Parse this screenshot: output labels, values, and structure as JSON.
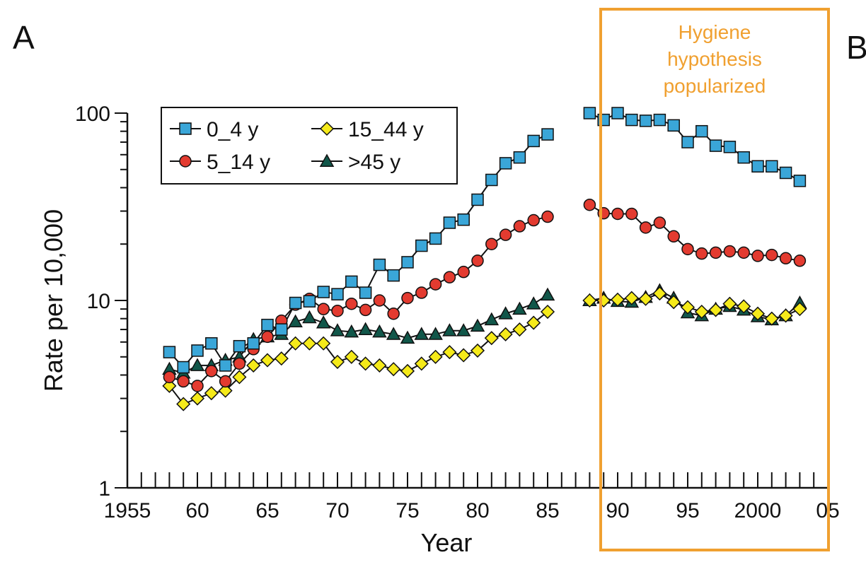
{
  "panel_labels": {
    "left": "A",
    "right": "B"
  },
  "annotation": {
    "lines": [
      "Hygiene",
      "hypothesis",
      "popularized"
    ]
  },
  "colors": {
    "annotation": "#f0a030",
    "series_0_4": "#3aa6d8",
    "series_5_14": "#e33b30",
    "series_15_44": "#f5ea1a",
    "series_gt45": "#11574a",
    "line": "#111111"
  },
  "chart_data": {
    "type": "line",
    "title": "",
    "xlabel": "Year",
    "ylabel": "Rate per 10,000",
    "y_scale": "log",
    "ylim": [
      1,
      100
    ],
    "xlim": [
      1955,
      2005
    ],
    "x_ticks": [
      1955,
      1960,
      1965,
      1970,
      1975,
      1980,
      1985,
      1990,
      1995,
      2000,
      2005
    ],
    "x_tick_labels": [
      "1955",
      "60",
      "65",
      "70",
      "75",
      "80",
      "85",
      "90",
      "95",
      "2000",
      "05"
    ],
    "y_ticks": [
      1,
      10,
      100
    ],
    "y_tick_labels": [
      "1",
      "10",
      "100"
    ],
    "legend_position": "top-left",
    "series": [
      {
        "name": "0_4 y",
        "marker": "square",
        "segments": [
          [
            [
              1958,
              5.3
            ],
            [
              1959,
              4.4
            ],
            [
              1960,
              5.4
            ],
            [
              1961,
              5.9
            ],
            [
              1962,
              4.5
            ],
            [
              1963,
              5.7
            ],
            [
              1964,
              5.9
            ],
            [
              1965,
              7.4
            ],
            [
              1966,
              7.0
            ],
            [
              1967,
              9.7
            ],
            [
              1968,
              9.9
            ],
            [
              1969,
              11.1
            ],
            [
              1970,
              10.8
            ],
            [
              1971,
              12.6
            ],
            [
              1972,
              11.0
            ],
            [
              1973,
              15.5
            ],
            [
              1974,
              13.6
            ],
            [
              1975,
              16.0
            ],
            [
              1976,
              19.6
            ],
            [
              1977,
              21.4
            ],
            [
              1978,
              26.0
            ],
            [
              1979,
              27.0
            ],
            [
              1980,
              34.5
            ],
            [
              1981,
              44.0
            ],
            [
              1982,
              54.0
            ],
            [
              1983,
              58.0
            ],
            [
              1984,
              71.0
            ],
            [
              1985,
              77.0
            ]
          ],
          [
            [
              1988,
              100
            ],
            [
              1989,
              92
            ],
            [
              1990,
              100
            ],
            [
              1991,
              92
            ],
            [
              1992,
              91
            ],
            [
              1993,
              92
            ],
            [
              1994,
              86
            ],
            [
              1995,
              70
            ],
            [
              1996,
              80
            ],
            [
              1997,
              67
            ],
            [
              1998,
              66
            ],
            [
              1999,
              58
            ],
            [
              2000,
              52
            ],
            [
              2001,
              52
            ],
            [
              2002,
              48
            ],
            [
              2003,
              43.5
            ]
          ]
        ]
      },
      {
        "name": "5_14 y",
        "marker": "circle",
        "segments": [
          [
            [
              1958,
              3.9
            ],
            [
              1959,
              3.7
            ],
            [
              1960,
              3.5
            ],
            [
              1961,
              4.2
            ],
            [
              1962,
              3.7
            ],
            [
              1963,
              4.6
            ],
            [
              1964,
              5.5
            ],
            [
              1965,
              6.4
            ],
            [
              1966,
              7.8
            ],
            [
              1967,
              9.5
            ],
            [
              1968,
              10.2
            ],
            [
              1969,
              9.0
            ],
            [
              1970,
              8.8
            ],
            [
              1971,
              9.6
            ],
            [
              1972,
              8.9
            ],
            [
              1973,
              10.0
            ],
            [
              1974,
              8.5
            ],
            [
              1975,
              10.3
            ],
            [
              1976,
              11.0
            ],
            [
              1977,
              12.2
            ],
            [
              1978,
              13.3
            ],
            [
              1979,
              14.2
            ],
            [
              1980,
              16.3
            ],
            [
              1981,
              20.0
            ],
            [
              1982,
              22.4
            ],
            [
              1983,
              24.9
            ],
            [
              1984,
              26.8
            ],
            [
              1985,
              28.0
            ]
          ],
          [
            [
              1988,
              32.4
            ],
            [
              1989,
              29.2
            ],
            [
              1990,
              29.0
            ],
            [
              1991,
              29.0
            ],
            [
              1992,
              24.5
            ],
            [
              1993,
              26.0
            ],
            [
              1994,
              22.0
            ],
            [
              1995,
              18.8
            ],
            [
              1996,
              17.8
            ],
            [
              1997,
              18.0
            ],
            [
              1998,
              18.3
            ],
            [
              1999,
              18.0
            ],
            [
              2000,
              17.3
            ],
            [
              2001,
              17.5
            ],
            [
              2002,
              16.8
            ],
            [
              2003,
              16.3
            ]
          ]
        ]
      },
      {
        "name": "15_44 y",
        "marker": "diamond",
        "segments": [
          [
            [
              1958,
              3.5
            ],
            [
              1959,
              2.8
            ],
            [
              1960,
              3.0
            ],
            [
              1961,
              3.2
            ],
            [
              1962,
              3.3
            ],
            [
              1963,
              3.9
            ],
            [
              1964,
              4.5
            ],
            [
              1965,
              4.8
            ],
            [
              1966,
              4.9
            ],
            [
              1967,
              5.9
            ],
            [
              1968,
              5.9
            ],
            [
              1969,
              5.9
            ],
            [
              1970,
              4.7
            ],
            [
              1971,
              5.0
            ],
            [
              1972,
              4.6
            ],
            [
              1973,
              4.5
            ],
            [
              1974,
              4.3
            ],
            [
              1975,
              4.2
            ],
            [
              1976,
              4.6
            ],
            [
              1977,
              5.0
            ],
            [
              1978,
              5.3
            ],
            [
              1979,
              5.1
            ],
            [
              1980,
              5.4
            ],
            [
              1981,
              6.3
            ],
            [
              1982,
              6.6
            ],
            [
              1983,
              7.0
            ],
            [
              1984,
              7.6
            ],
            [
              1985,
              8.7
            ]
          ],
          [
            [
              1988,
              10.0
            ],
            [
              1989,
              10.0
            ],
            [
              1990,
              10.1
            ],
            [
              1991,
              10.3
            ],
            [
              1992,
              10.2
            ],
            [
              1993,
              10.9
            ],
            [
              1994,
              9.8
            ],
            [
              1995,
              9.2
            ],
            [
              1996,
              8.7
            ],
            [
              1997,
              8.9
            ],
            [
              1998,
              9.6
            ],
            [
              1999,
              9.3
            ],
            [
              2000,
              8.5
            ],
            [
              2001,
              8.0
            ],
            [
              2002,
              8.3
            ],
            [
              2003,
              9.0
            ]
          ]
        ]
      },
      {
        "name": ">45 y",
        "marker": "triangle",
        "segments": [
          [
            [
              1958,
              4.3
            ],
            [
              1959,
              4.1
            ],
            [
              1960,
              4.5
            ],
            [
              1961,
              4.5
            ],
            [
              1962,
              4.8
            ],
            [
              1963,
              5.0
            ],
            [
              1964,
              6.2
            ],
            [
              1965,
              6.4
            ],
            [
              1966,
              6.6
            ],
            [
              1967,
              7.7
            ],
            [
              1968,
              8.1
            ],
            [
              1969,
              7.6
            ],
            [
              1970,
              6.9
            ],
            [
              1971,
              6.8
            ],
            [
              1972,
              7.0
            ],
            [
              1973,
              6.8
            ],
            [
              1974,
              6.6
            ],
            [
              1975,
              6.3
            ],
            [
              1976,
              6.6
            ],
            [
              1977,
              6.6
            ],
            [
              1978,
              6.9
            ],
            [
              1979,
              6.9
            ],
            [
              1980,
              7.3
            ],
            [
              1981,
              7.9
            ],
            [
              1982,
              8.5
            ],
            [
              1983,
              9.0
            ],
            [
              1984,
              9.6
            ],
            [
              1985,
              10.7
            ]
          ],
          [
            [
              1988,
              10.0
            ],
            [
              1989,
              10.3
            ],
            [
              1990,
              9.9
            ],
            [
              1991,
              9.8
            ],
            [
              1992,
              10.4
            ],
            [
              1993,
              11.3
            ],
            [
              1994,
              10.3
            ],
            [
              1995,
              8.6
            ],
            [
              1996,
              8.3
            ],
            [
              1997,
              9.0
            ],
            [
              1998,
              9.3
            ],
            [
              1999,
              8.9
            ],
            [
              2000,
              8.2
            ],
            [
              2001,
              7.9
            ],
            [
              2002,
              8.3
            ],
            [
              2003,
              9.7
            ]
          ]
        ]
      }
    ]
  }
}
